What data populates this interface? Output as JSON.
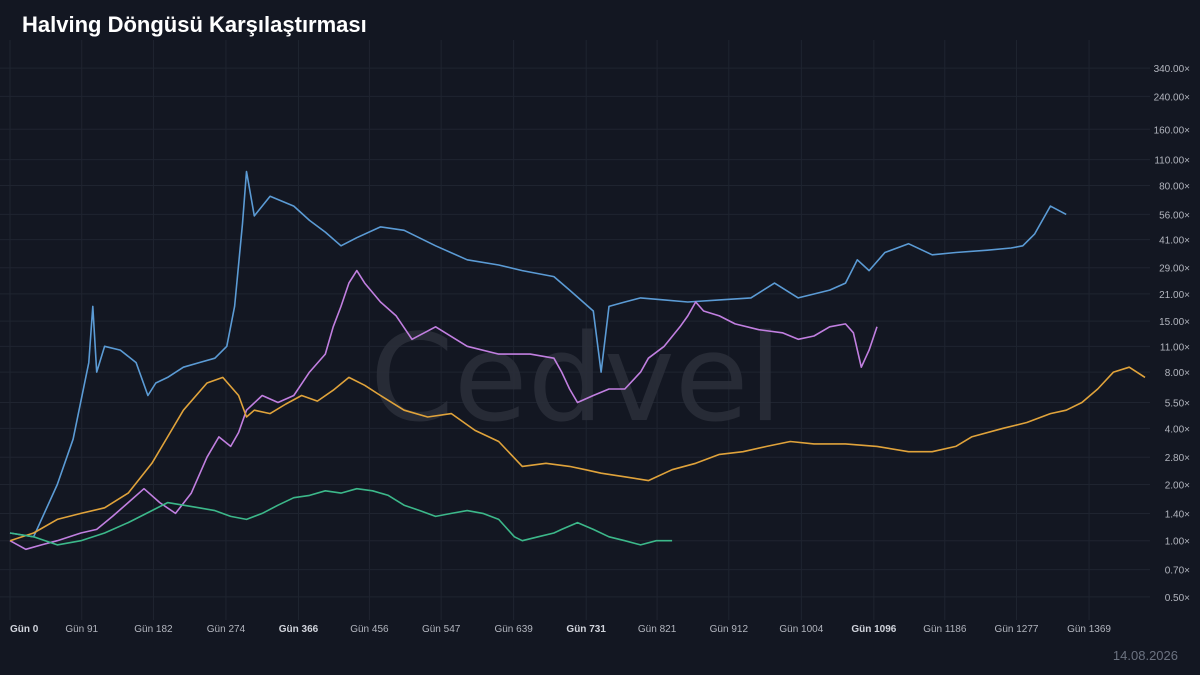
{
  "header": {
    "title": "Halving Döngüsü Karşılaştırması"
  },
  "footer": {
    "date": "14.08.2026"
  },
  "watermark": {
    "text": "Cedvel"
  },
  "colors": {
    "background": "#131722",
    "grid": "#1f2430",
    "blue": "#5b9bd5",
    "purple": "#c17fe0",
    "orange": "#e0a33b",
    "green": "#3cb88a"
  },
  "chart_data": {
    "type": "line",
    "title": "Halving Döngüsü Karşılaştırması",
    "xlabel": "",
    "ylabel": "",
    "y_scale": "log",
    "xlim": [
      0,
      1440
    ],
    "ylim": [
      0.4,
      400
    ],
    "grid": true,
    "x_ticks": [
      {
        "value": 0,
        "label": "Gün 0",
        "major": true
      },
      {
        "value": 91,
        "label": "Gün 91",
        "major": false
      },
      {
        "value": 182,
        "label": "Gün 182",
        "major": false
      },
      {
        "value": 274,
        "label": "Gün 274",
        "major": false
      },
      {
        "value": 366,
        "label": "Gün 366",
        "major": true
      },
      {
        "value": 456,
        "label": "Gün 456",
        "major": false
      },
      {
        "value": 547,
        "label": "Gün 547",
        "major": false
      },
      {
        "value": 639,
        "label": "Gün 639",
        "major": false
      },
      {
        "value": 731,
        "label": "Gün 731",
        "major": true
      },
      {
        "value": 821,
        "label": "Gün 821",
        "major": false
      },
      {
        "value": 912,
        "label": "Gün 912",
        "major": false
      },
      {
        "value": 1004,
        "label": "Gün 1004",
        "major": false
      },
      {
        "value": 1096,
        "label": "Gün 1096",
        "major": true
      },
      {
        "value": 1186,
        "label": "Gün 1186",
        "major": false
      },
      {
        "value": 1277,
        "label": "Gün 1277",
        "major": false
      },
      {
        "value": 1369,
        "label": "Gün 1369",
        "major": false
      }
    ],
    "y_ticks": [
      {
        "value": 340,
        "label": "340.00×"
      },
      {
        "value": 240,
        "label": "240.00×"
      },
      {
        "value": 160,
        "label": "160.00×"
      },
      {
        "value": 110,
        "label": "110.00×"
      },
      {
        "value": 80,
        "label": "80.00×"
      },
      {
        "value": 56,
        "label": "56.00×"
      },
      {
        "value": 41,
        "label": "41.00×"
      },
      {
        "value": 29,
        "label": "29.00×"
      },
      {
        "value": 21,
        "label": "21.00×"
      },
      {
        "value": 15,
        "label": "15.00×"
      },
      {
        "value": 11,
        "label": "11.00×"
      },
      {
        "value": 8,
        "label": "8.00×"
      },
      {
        "value": 5.5,
        "label": "5.50×"
      },
      {
        "value": 4,
        "label": "4.00×"
      },
      {
        "value": 2.8,
        "label": "2.80×"
      },
      {
        "value": 2,
        "label": "2.00×"
      },
      {
        "value": 1.4,
        "label": "1.40×"
      },
      {
        "value": 1,
        "label": "1.00×"
      },
      {
        "value": 0.7,
        "label": "0.70×"
      },
      {
        "value": 0.5,
        "label": "0.50×"
      }
    ],
    "series": [
      {
        "color": "#5b9bd5",
        "x": [
          0,
          30,
          60,
          80,
          100,
          105,
          110,
          120,
          140,
          160,
          175,
          185,
          200,
          220,
          240,
          260,
          275,
          285,
          295,
          300,
          310,
          330,
          360,
          380,
          400,
          420,
          440,
          470,
          500,
          540,
          580,
          620,
          650,
          690,
          710,
          740,
          750,
          760,
          780,
          800,
          830,
          860,
          900,
          940,
          970,
          1000,
          1040,
          1060,
          1075,
          1090,
          1110,
          1140,
          1170,
          1200,
          1240,
          1270,
          1285,
          1300,
          1320,
          1340
        ],
        "y": [
          1.1,
          1.05,
          2.0,
          3.5,
          9.0,
          18.0,
          8.0,
          11.0,
          10.5,
          9.0,
          6.0,
          7.0,
          7.5,
          8.5,
          9.0,
          9.5,
          11.0,
          18.0,
          50.0,
          95.0,
          55.0,
          70.0,
          62.0,
          52.0,
          45.0,
          38.0,
          42.0,
          48.0,
          46.0,
          38.0,
          32.0,
          30.0,
          28.0,
          26.0,
          22.0,
          17.0,
          8.0,
          18.0,
          19.0,
          20.0,
          19.5,
          19.0,
          19.5,
          20.0,
          24.0,
          20.0,
          22.0,
          24.0,
          32.0,
          28.0,
          35.0,
          39.0,
          34.0,
          35.0,
          36.0,
          37.0,
          38.0,
          44.0,
          62.0,
          56.0
        ]
      },
      {
        "color": "#c17fe0",
        "x": [
          0,
          20,
          40,
          60,
          90,
          110,
          130,
          150,
          170,
          190,
          210,
          230,
          250,
          265,
          280,
          290,
          300,
          320,
          340,
          360,
          380,
          400,
          410,
          420,
          430,
          440,
          450,
          470,
          490,
          510,
          540,
          580,
          620,
          660,
          690,
          700,
          710,
          720,
          740,
          760,
          780,
          800,
          810,
          830,
          850,
          860,
          870,
          880,
          900,
          920,
          950,
          980,
          1000,
          1020,
          1040,
          1060,
          1070,
          1080,
          1090,
          1100
        ],
        "y": [
          1.0,
          0.9,
          0.95,
          1.0,
          1.1,
          1.15,
          1.35,
          1.6,
          1.9,
          1.6,
          1.4,
          1.8,
          2.8,
          3.6,
          3.2,
          3.8,
          5.0,
          6.0,
          5.5,
          6.0,
          8.0,
          10.0,
          14.0,
          18.0,
          24.0,
          28.0,
          24.0,
          19.0,
          16.0,
          12.0,
          14.0,
          11.0,
          10.0,
          10.0,
          9.5,
          8.0,
          6.5,
          5.5,
          6.0,
          6.5,
          6.5,
          8.0,
          9.5,
          11.0,
          14.0,
          16.0,
          19.0,
          17.0,
          16.0,
          14.5,
          13.5,
          13.0,
          12.0,
          12.5,
          14.0,
          14.5,
          13.0,
          8.5,
          10.5,
          14.0
        ]
      },
      {
        "color": "#e0a33b",
        "x": [
          0,
          30,
          60,
          90,
          120,
          150,
          180,
          200,
          220,
          250,
          270,
          290,
          300,
          310,
          330,
          350,
          370,
          390,
          410,
          430,
          450,
          470,
          500,
          530,
          560,
          590,
          620,
          650,
          680,
          710,
          730,
          750,
          780,
          810,
          840,
          870,
          900,
          930,
          960,
          990,
          1020,
          1060,
          1100,
          1140,
          1170,
          1200,
          1220,
          1260,
          1290,
          1320,
          1340,
          1360,
          1380,
          1400,
          1420,
          1440
        ],
        "y": [
          1.0,
          1.1,
          1.3,
          1.4,
          1.5,
          1.8,
          2.6,
          3.6,
          5.0,
          7.0,
          7.5,
          6.0,
          4.6,
          5.0,
          4.8,
          5.4,
          6.0,
          5.6,
          6.4,
          7.5,
          6.8,
          6.0,
          5.0,
          4.6,
          4.8,
          3.9,
          3.4,
          2.5,
          2.6,
          2.5,
          2.4,
          2.3,
          2.2,
          2.1,
          2.4,
          2.6,
          2.9,
          3.0,
          3.2,
          3.4,
          3.3,
          3.3,
          3.2,
          3.0,
          3.0,
          3.2,
          3.6,
          4.0,
          4.3,
          4.8,
          5.0,
          5.5,
          6.5,
          8.0,
          8.5,
          7.5
        ]
      },
      {
        "color": "#3cb88a",
        "x": [
          0,
          30,
          60,
          90,
          120,
          150,
          180,
          200,
          220,
          240,
          260,
          280,
          300,
          320,
          340,
          360,
          380,
          400,
          420,
          440,
          460,
          480,
          500,
          520,
          540,
          560,
          580,
          600,
          620,
          640,
          650,
          670,
          690,
          700,
          720,
          740,
          760,
          780,
          800,
          820,
          840
        ],
        "y": [
          1.1,
          1.05,
          0.95,
          1.0,
          1.1,
          1.25,
          1.45,
          1.6,
          1.55,
          1.5,
          1.45,
          1.35,
          1.3,
          1.4,
          1.55,
          1.7,
          1.75,
          1.85,
          1.8,
          1.9,
          1.85,
          1.75,
          1.55,
          1.45,
          1.35,
          1.4,
          1.45,
          1.4,
          1.3,
          1.05,
          1.0,
          1.05,
          1.1,
          1.15,
          1.25,
          1.15,
          1.05,
          1.0,
          0.95,
          1.0,
          1.0
        ]
      }
    ]
  }
}
